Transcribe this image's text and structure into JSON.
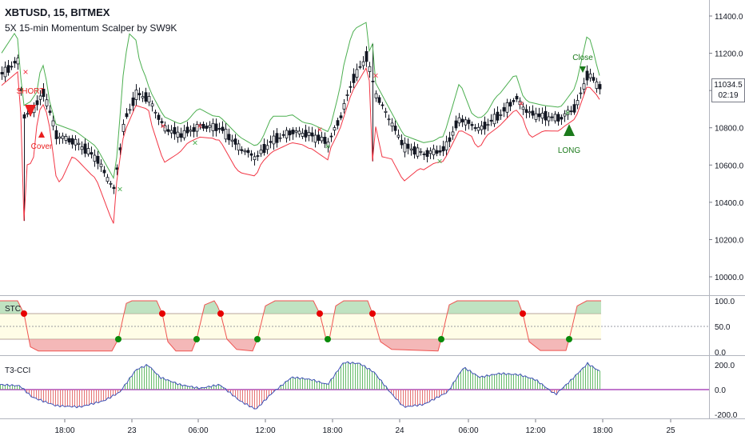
{
  "header": {
    "symbol_line": "XBTUSD, 15, BITMEX",
    "study_line": "5X 15-min Momentum Scalper by SW9K"
  },
  "price_axis": {
    "ticks": [
      "11400.0",
      "11200.0",
      "11000.0",
      "10800.0",
      "10600.0",
      "10400.0",
      "10200.0",
      "10000.0"
    ],
    "tick_values": [
      11400,
      11200,
      11000,
      10800,
      10600,
      10400,
      10200,
      10000
    ],
    "current_price": "11034.5",
    "countdown": "02:19"
  },
  "stc_panel": {
    "label": "STC",
    "ticks": [
      "100.0",
      "50.0",
      "0.0"
    ],
    "tick_values": [
      100,
      50,
      0
    ]
  },
  "cci_panel": {
    "label": "T3-CCI",
    "ticks": [
      "200.0",
      "0.0",
      "-200.0"
    ],
    "tick_values": [
      200,
      0,
      -200
    ]
  },
  "time_axis": {
    "ticks": [
      "18:00",
      "23",
      "06:00",
      "12:00",
      "18:00",
      "24",
      "06:00",
      "12:00",
      "18:00",
      "25"
    ]
  },
  "signals": {
    "short": "SHORT",
    "cover": "Cover",
    "close": "Close",
    "long": "LONG"
  },
  "colors": {
    "bullish_candle": "#131722",
    "upper_band": "#4caf50",
    "lower_band": "#f23645",
    "short_marker": "#e91e1e",
    "long_marker": "#1b7a1b",
    "stc_line": "#ef5350",
    "stc_fill_high": "#a5d6a7",
    "stc_fill_low": "#ef9a9a",
    "cci_line": "#3f51b5",
    "cci_hist_pos": "#66bb6a",
    "cci_hist_neg": "#e57373",
    "zero_line": "#9c27b0"
  }
}
